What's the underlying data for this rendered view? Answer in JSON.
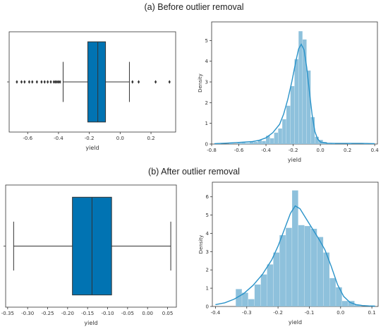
{
  "titles": {
    "a": "(a)  Before outlier removal",
    "b": "(b) After outlier removal"
  },
  "colors": {
    "box": "#0173b2",
    "hist": "#8ec1dc",
    "kde": "#2a93c9",
    "line": "#333333"
  },
  "chart_data": [
    {
      "id": "box_before",
      "type": "box",
      "title": "",
      "xlabel": "yield",
      "xlim": [
        -0.72,
        0.36
      ],
      "xticks": [
        -0.6,
        -0.4,
        -0.2,
        0.0,
        0.2
      ],
      "xtick_labels": [
        "-0.6",
        "-0.4",
        "-0.2",
        "0.0",
        "0.2"
      ],
      "stats": {
        "whisker_low": -0.37,
        "q1": -0.21,
        "median": -0.145,
        "q3": -0.095,
        "whisker_high": 0.06
      },
      "outliers": [
        -0.67,
        -0.64,
        -0.62,
        -0.59,
        -0.57,
        -0.54,
        -0.51,
        -0.49,
        -0.47,
        -0.45,
        -0.43,
        -0.42,
        -0.41,
        -0.4,
        -0.39,
        0.08,
        0.12,
        0.23,
        0.32
      ]
    },
    {
      "id": "hist_before",
      "type": "histogram",
      "title": "",
      "xlabel": "yield",
      "ylabel": "Density",
      "xlim": [
        -0.8,
        0.42
      ],
      "ylim": [
        0,
        5.9
      ],
      "xticks": [
        -0.8,
        -0.6,
        -0.4,
        -0.2,
        0.0,
        0.2,
        0.4
      ],
      "xtick_labels": [
        "-0.8",
        "-0.6",
        "-0.4",
        "-0.2",
        "0.0",
        "0.2",
        "0.4"
      ],
      "yticks": [
        0,
        1,
        2,
        3,
        4,
        5
      ],
      "ytick_labels": [
        "0",
        "1",
        "2",
        "3",
        "4",
        "5"
      ],
      "bin_edges": [
        -0.76,
        -0.73,
        -0.7,
        -0.67,
        -0.64,
        -0.61,
        -0.58,
        -0.55,
        -0.52,
        -0.49,
        -0.46,
        -0.43,
        -0.4,
        -0.37,
        -0.34,
        -0.31,
        -0.28,
        -0.25,
        -0.22,
        -0.19,
        -0.16,
        -0.13,
        -0.1,
        -0.07,
        -0.04,
        -0.01,
        0.02,
        0.05,
        0.08,
        0.11,
        0.14,
        0.17,
        0.2,
        0.23,
        0.26,
        0.29,
        0.32,
        0.35,
        0.38
      ],
      "densities": [
        0.05,
        0.0,
        0.0,
        0.05,
        0.0,
        0.05,
        0.08,
        0.05,
        0.1,
        0.1,
        0.2,
        0.15,
        0.4,
        0.28,
        0.55,
        0.75,
        1.2,
        1.85,
        2.8,
        4.1,
        5.45,
        5.05,
        3.55,
        1.3,
        0.35,
        0.2,
        0.1,
        0.05,
        0.05,
        0.0,
        0.0,
        0.0,
        0.05,
        0.0,
        0.0,
        0.0,
        0.05,
        0.0
      ],
      "kde": {
        "x": [
          -0.78,
          -0.7,
          -0.6,
          -0.5,
          -0.45,
          -0.4,
          -0.35,
          -0.3,
          -0.27,
          -0.24,
          -0.21,
          -0.18,
          -0.16,
          -0.14,
          -0.12,
          -0.1,
          -0.08,
          -0.06,
          -0.04,
          -0.02,
          0.0,
          0.05,
          0.1,
          0.2,
          0.3,
          0.4
        ],
        "y": [
          0.02,
          0.04,
          0.08,
          0.12,
          0.18,
          0.3,
          0.55,
          0.95,
          1.45,
          2.15,
          3.0,
          4.0,
          4.6,
          4.82,
          4.55,
          3.7,
          2.5,
          1.4,
          0.6,
          0.25,
          0.1,
          0.04,
          0.03,
          0.03,
          0.03,
          0.02
        ]
      }
    },
    {
      "id": "box_after",
      "type": "box",
      "title": "",
      "xlabel": "yield",
      "xlim": [
        -0.355,
        0.072
      ],
      "xticks": [
        -0.35,
        -0.3,
        -0.25,
        -0.2,
        -0.15,
        -0.1,
        -0.05,
        0.0,
        0.05
      ],
      "xtick_labels": [
        "-0.35",
        "-0.30",
        "-0.25",
        "-0.20",
        "-0.15",
        "-0.10",
        "-0.05",
        "0.00",
        "0.05"
      ],
      "stats": {
        "whisker_low": -0.335,
        "q1": -0.188,
        "median": -0.139,
        "q3": -0.09,
        "whisker_high": 0.058
      },
      "outliers": []
    },
    {
      "id": "hist_after",
      "type": "histogram",
      "title": "",
      "xlabel": "yield",
      "ylabel": "Density",
      "xlim": [
        -0.41,
        0.12
      ],
      "ylim": [
        0,
        6.8
      ],
      "xticks": [
        -0.4,
        -0.3,
        -0.2,
        -0.1,
        0.0,
        0.1
      ],
      "xtick_labels": [
        "-0.4",
        "-0.3",
        "-0.2",
        "-0.1",
        "0.0",
        "0.1"
      ],
      "yticks": [
        0,
        1,
        2,
        3,
        4,
        5,
        6
      ],
      "ytick_labels": [
        "0",
        "1",
        "2",
        "3",
        "4",
        "5",
        "6"
      ],
      "bin_edges": [
        -0.335,
        -0.315,
        -0.295,
        -0.275,
        -0.255,
        -0.235,
        -0.215,
        -0.195,
        -0.175,
        -0.155,
        -0.135,
        -0.115,
        -0.095,
        -0.075,
        -0.055,
        -0.035,
        -0.015,
        0.005,
        0.025,
        0.045,
        0.065
      ],
      "densities": [
        0.95,
        0.75,
        0.4,
        1.2,
        1.75,
        2.3,
        2.95,
        3.9,
        4.3,
        6.35,
        4.45,
        4.4,
        4.25,
        3.8,
        2.95,
        1.55,
        1.05,
        0.3,
        0.3,
        0.1
      ],
      "kde": {
        "x": [
          -0.4,
          -0.37,
          -0.34,
          -0.31,
          -0.28,
          -0.25,
          -0.22,
          -0.2,
          -0.18,
          -0.16,
          -0.145,
          -0.13,
          -0.11,
          -0.09,
          -0.07,
          -0.05,
          -0.03,
          -0.01,
          0.01,
          0.03,
          0.05,
          0.07,
          0.09,
          0.11
        ],
        "y": [
          0.1,
          0.2,
          0.4,
          0.7,
          1.15,
          1.75,
          2.55,
          3.3,
          4.2,
          5.1,
          5.5,
          5.35,
          4.8,
          4.25,
          3.7,
          3.1,
          2.2,
          1.2,
          0.55,
          0.22,
          0.1,
          0.05,
          0.03,
          0.02
        ]
      }
    }
  ]
}
